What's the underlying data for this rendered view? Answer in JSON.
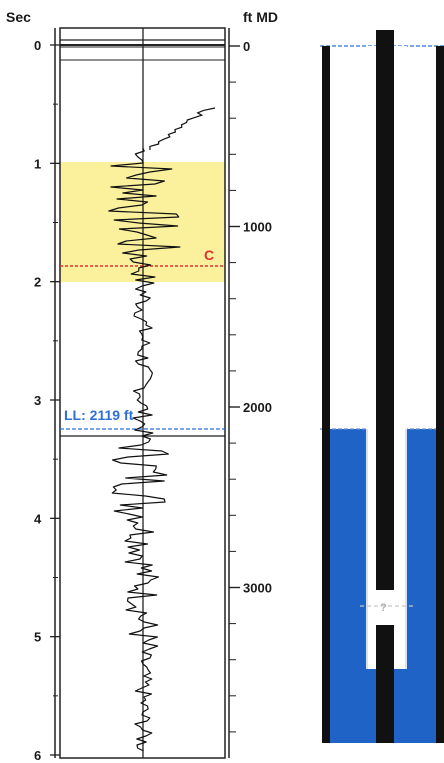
{
  "left_axis_label": "Sec",
  "right_axis_label": "ft MD",
  "time_ticks": [
    "0",
    "1",
    "2",
    "3",
    "4",
    "5",
    "6"
  ],
  "depth_ticks": [
    "0",
    "1000",
    "2000",
    "3000"
  ],
  "marker_c_label": "C",
  "liquid_level_label": "LL: 2119 ft",
  "well_marker_label": "?",
  "colors": {
    "highlight_zone": "#fbf19c",
    "marker_c": "#e03030",
    "liquid_level": "#2f6fd6",
    "fluid_fill": "#1f63c6",
    "trace": "#111111"
  }
}
